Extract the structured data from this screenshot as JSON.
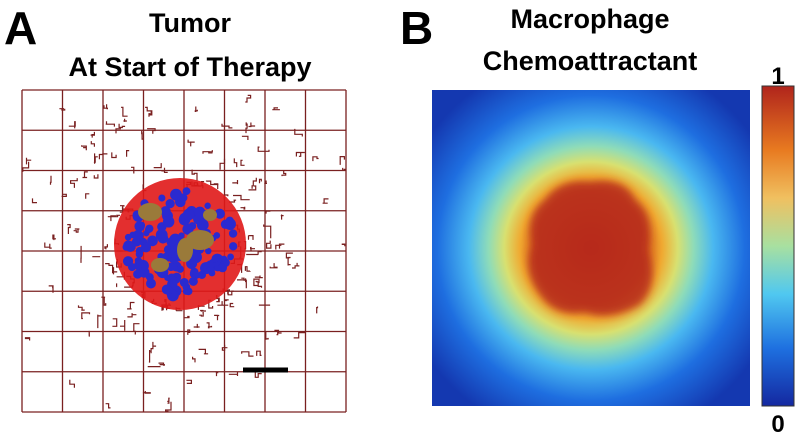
{
  "panels": [
    {
      "letter": "A",
      "title_lines": [
        "Tumor",
        "At Start of Therapy"
      ]
    },
    {
      "letter": "B",
      "title_lines": [
        "Macrophage",
        "Chemoattractant"
      ]
    }
  ],
  "colorbar": {
    "top_label": "1",
    "bottom_label": "0"
  }
}
